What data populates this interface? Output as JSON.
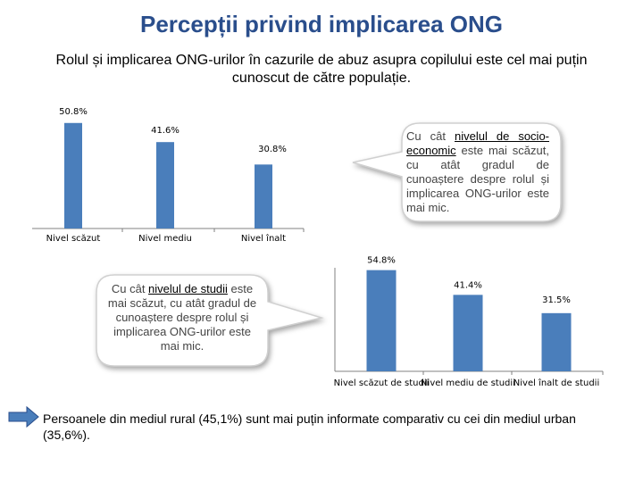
{
  "title": "Percepții privind implicarea ONG",
  "subtitle": "Rolul și implicarea ONG-urilor în cazurile de abuz asupra copilului este cel mai puțin cunoscut de către populație.",
  "callout_economic": {
    "prefix": "Cu cât ",
    "emphasis": "nivelul de socio-economic",
    "suffix": " este mai scăzut, cu atât gradul de cunoaștere despre rolul și implicarea ONG-urilor este mai mic."
  },
  "callout_studies": {
    "prefix": "Cu cât ",
    "emphasis": "nivelul de studii",
    "suffix": " este mai scăzut, cu atât gradul de cunoaștere despre rolul și implicarea ONG-urilor este mai mic."
  },
  "footnote": "Persoanele din mediul rural (45,1%) sunt mai puțin informate comparativ cu cei din mediul urban (35,6%).",
  "colors": {
    "bar": "#4a7ebb",
    "title": "#2a4e8c",
    "bubble_fill": "#ffffff",
    "arrow_fill": "#4a7ebb"
  },
  "icons": {
    "footnote_arrow": "right-arrow-icon"
  },
  "chart_data": [
    {
      "type": "bar",
      "categories": [
        "Nivel scăzut",
        "Nivel mediu",
        "Nivel înalt"
      ],
      "values": [
        50.8,
        41.6,
        30.8
      ],
      "labels": [
        "50.8%",
        "41.6%",
        "30.8%"
      ],
      "ylim": [
        0,
        55
      ],
      "grid": false,
      "legend": "none"
    },
    {
      "type": "bar",
      "categories": [
        "Nivel scăzut de studii",
        "Nivel mediu de studii",
        "Nivel înalt de studii"
      ],
      "values": [
        54.8,
        41.4,
        31.5
      ],
      "labels": [
        "54.8%",
        "41.4%",
        "31.5%"
      ],
      "ylim": [
        0,
        58
      ],
      "grid": false,
      "legend": "none"
    }
  ]
}
